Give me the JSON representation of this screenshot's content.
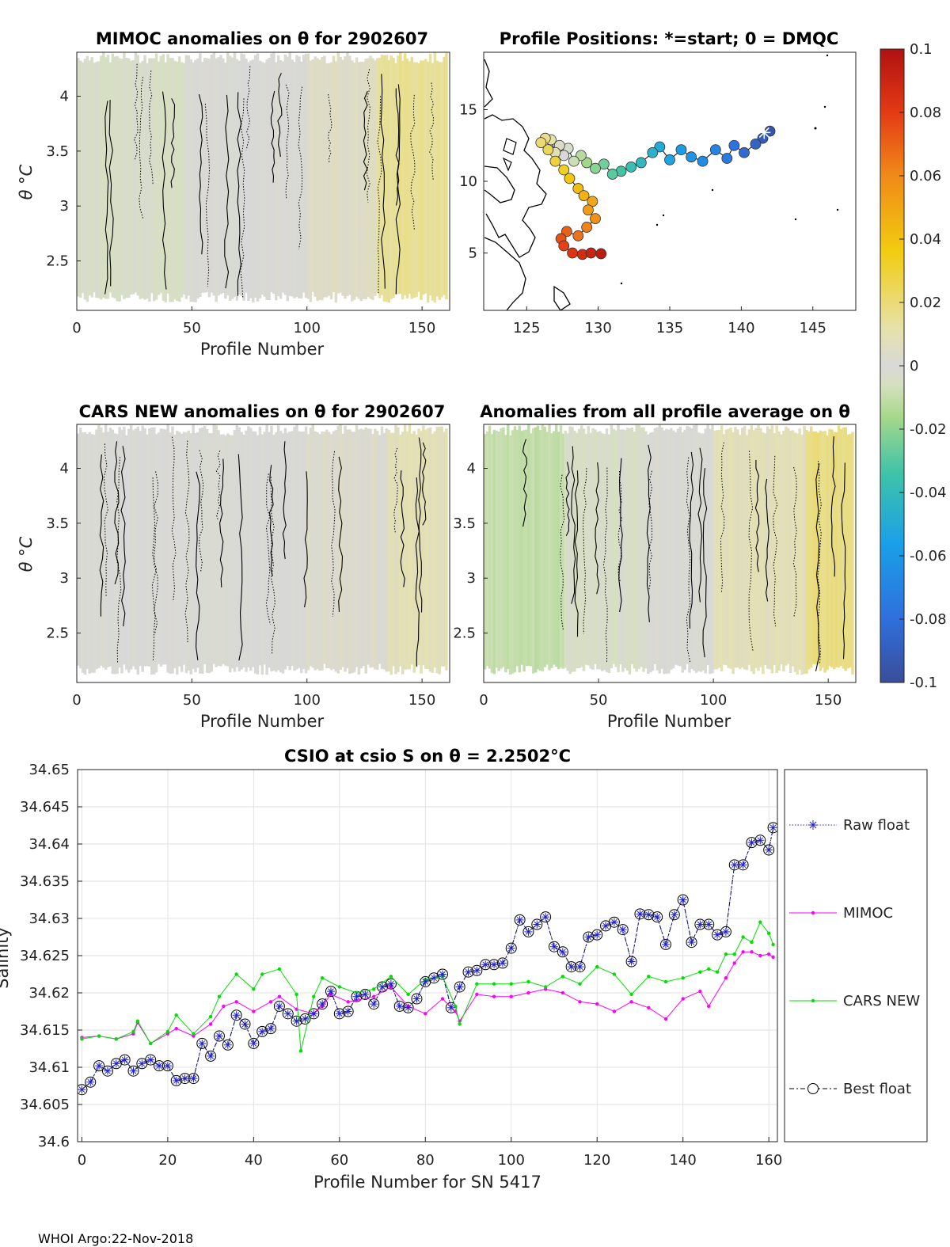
{
  "footer": "WHOI Argo:22-Nov-2018",
  "chart_data": [
    {
      "type": "heatmap",
      "title": "MIMOC anomalies on θ  for 2902607",
      "xlabel": "Profile Number",
      "ylabel": "θ °C",
      "xlim": [
        0,
        162
      ],
      "ylim": [
        2.05,
        4.4
      ],
      "xticks": [
        "0",
        "50",
        "100",
        "150"
      ],
      "yticks": [
        "2.5",
        "3",
        "3.5",
        "4"
      ],
      "zones": [
        {
          "x0": 0,
          "x1": 48,
          "value": -0.004
        },
        {
          "x0": 48,
          "x1": 100,
          "value": 0.0
        },
        {
          "x0": 100,
          "x1": 130,
          "value": 0.005
        },
        {
          "x0": 130,
          "x1": 162,
          "value": 0.015
        }
      ]
    },
    {
      "type": "scatter",
      "title": "Profile Positions: *=start; 0 = DMQC",
      "xlim": [
        122,
        148
      ],
      "ylim": [
        1,
        19
      ],
      "xticks": [
        "125",
        "130",
        "135",
        "140",
        "145"
      ],
      "yticks": [
        "5",
        "10",
        "15"
      ],
      "colorbar": {
        "min": -0.1,
        "max": 0.1,
        "ticks": [
          "0.1",
          "0.08",
          "0.06",
          "0.04",
          "0.02",
          "0",
          "-0.02",
          "-0.04",
          "-0.06",
          "-0.08",
          "-0.1"
        ]
      },
      "track_lon": [
        142.0,
        141.5,
        141.0,
        140.2,
        139.5,
        139.0,
        138.2,
        137.3,
        136.5,
        135.8,
        135.0,
        134.3,
        133.8,
        133.0,
        132.3,
        131.6,
        131.0,
        130.4,
        129.8,
        129.2,
        128.8,
        128.3,
        127.9,
        127.6,
        127.3,
        127.0,
        126.7,
        126.3,
        126.0,
        126.5,
        127.0,
        127.6,
        128.0,
        128.6,
        129.0,
        129.6,
        129.3,
        129.8,
        129.2,
        128.6,
        127.8,
        127.4,
        127.6,
        128.2,
        128.9,
        129.5,
        130.2
      ],
      "track_lat": [
        13.5,
        13.0,
        12.6,
        12.0,
        12.5,
        11.6,
        12.2,
        11.4,
        11.7,
        12.2,
        11.5,
        12.4,
        12.0,
        11.3,
        11.0,
        10.7,
        10.5,
        11.2,
        10.9,
        11.3,
        11.8,
        11.4,
        12.3,
        11.8,
        12.5,
        12.0,
        12.9,
        13.0,
        12.7,
        12.2,
        11.4,
        10.8,
        10.2,
        9.5,
        9.0,
        8.6,
        8.0,
        7.4,
        6.8,
        6.2,
        6.5,
        6.0,
        5.5,
        5.0,
        4.9,
        5.0,
        4.95
      ],
      "start": {
        "lon": 141.6,
        "lat": 13.4
      }
    },
    {
      "type": "heatmap",
      "title": "CARS NEW anomalies on θ for 2902607",
      "xlabel": "Profile Number",
      "ylabel": "θ °C",
      "xlim": [
        0,
        162
      ],
      "ylim": [
        2.05,
        4.4
      ],
      "xticks": [
        "0",
        "50",
        "100",
        "150"
      ],
      "yticks": [
        "2.5",
        "3",
        "3.5",
        "4"
      ],
      "zones": [
        {
          "x0": 0,
          "x1": 100,
          "value": 0.0
        },
        {
          "x0": 100,
          "x1": 135,
          "value": 0.003
        },
        {
          "x0": 135,
          "x1": 162,
          "value": 0.008
        }
      ]
    },
    {
      "type": "heatmap",
      "title": "Anomalies from all profile average on θ",
      "xlabel": "Profile Number",
      "xlim": [
        0,
        162
      ],
      "ylim": [
        2.05,
        4.4
      ],
      "xticks": [
        "0",
        "50",
        "100",
        "150"
      ],
      "yticks": [
        "2.5",
        "3",
        "3.5",
        "4"
      ],
      "zones": [
        {
          "x0": 0,
          "x1": 35,
          "value": -0.01
        },
        {
          "x0": 35,
          "x1": 70,
          "value": -0.004
        },
        {
          "x0": 70,
          "x1": 100,
          "value": 0.0
        },
        {
          "x0": 100,
          "x1": 140,
          "value": 0.008
        },
        {
          "x0": 140,
          "x1": 162,
          "value": 0.018
        }
      ]
    },
    {
      "type": "line",
      "title": "CSIO at csio S on θ = 2.2502°C",
      "xlabel": "Profile Number for SN 5417",
      "ylabel": "Salinity",
      "xlim": [
        -1,
        162
      ],
      "ylim": [
        34.6,
        34.65
      ],
      "xticks": [
        "0",
        "20",
        "40",
        "60",
        "80",
        "100",
        "120",
        "140",
        "160"
      ],
      "yticks": [
        "34.6",
        "34.605",
        "34.61",
        "34.615",
        "34.62",
        "34.625",
        "34.63",
        "34.635",
        "34.64",
        "34.645",
        "34.65"
      ],
      "grid": true,
      "legend": [
        "Raw float",
        "MIMOC",
        "CARS NEW",
        "Best float"
      ],
      "series": [
        {
          "name": "Best float",
          "x": [
            0,
            2,
            4,
            6,
            8,
            10,
            12,
            14,
            16,
            18,
            20,
            22,
            24,
            26,
            28,
            30,
            32,
            34,
            36,
            38,
            40,
            42,
            44,
            46,
            48,
            50,
            52,
            54,
            56,
            58,
            60,
            62,
            64,
            66,
            68,
            70,
            72,
            74,
            76,
            78,
            80,
            82,
            84,
            86,
            88,
            90,
            92,
            94,
            96,
            98,
            100,
            102,
            104,
            106,
            108,
            110,
            112,
            114,
            116,
            118,
            120,
            122,
            124,
            126,
            128,
            130,
            132,
            134,
            136,
            138,
            140,
            142,
            144,
            146,
            148,
            150,
            152,
            154,
            156,
            158,
            160,
            161
          ],
          "values": [
            34.607,
            34.608,
            34.6102,
            34.6095,
            34.6105,
            34.611,
            34.6095,
            34.6105,
            34.611,
            34.6102,
            34.6102,
            34.6082,
            34.6085,
            34.6085,
            34.6132,
            34.6115,
            34.6142,
            34.613,
            34.617,
            34.6158,
            34.6132,
            34.6148,
            34.6152,
            34.6182,
            34.6172,
            34.6162,
            34.6165,
            34.6172,
            34.6185,
            34.6202,
            34.6172,
            34.6175,
            34.6195,
            34.6198,
            34.6185,
            34.6208,
            34.6212,
            34.6182,
            34.618,
            34.6192,
            34.6215,
            34.622,
            34.6225,
            34.618,
            34.6208,
            34.6228,
            34.623,
            34.6238,
            34.6238,
            34.624,
            34.626,
            34.6298,
            34.6282,
            34.6292,
            34.6302,
            34.6262,
            34.6255,
            34.6235,
            34.6235,
            34.6275,
            34.6278,
            34.629,
            34.6295,
            34.6285,
            34.6242,
            34.6306,
            34.6305,
            34.6302,
            34.6265,
            34.6305,
            34.6325,
            34.6268,
            34.6292,
            34.6292,
            34.6278,
            34.6282,
            34.6372,
            34.6372,
            34.6402,
            34.6405,
            34.6392,
            34.6422
          ]
        },
        {
          "name": "MIMOC",
          "x": [
            0,
            4,
            8,
            12,
            13,
            16,
            20,
            22,
            26,
            30,
            33,
            36,
            40,
            44,
            46,
            50,
            54,
            56,
            58,
            62,
            64,
            68,
            72,
            76,
            80,
            84,
            87,
            88,
            92,
            96,
            100,
            104,
            108,
            112,
            116,
            120,
            124,
            128,
            132,
            136,
            140,
            144,
            146,
            150,
            152,
            154,
            156,
            158,
            160,
            161
          ],
          "values": [
            34.614,
            34.6142,
            34.6138,
            34.6145,
            34.616,
            34.6132,
            34.6145,
            34.6152,
            34.6142,
            34.6158,
            34.6182,
            34.6188,
            34.6175,
            34.6188,
            34.6195,
            34.6178,
            34.6172,
            34.6182,
            34.6198,
            34.6188,
            34.619,
            34.6195,
            34.6208,
            34.6182,
            34.6172,
            34.6192,
            34.6175,
            34.6162,
            34.6198,
            34.6195,
            34.6195,
            34.62,
            34.6205,
            34.62,
            34.6188,
            34.6185,
            34.6175,
            34.6188,
            34.618,
            34.6165,
            34.6192,
            34.6202,
            34.6182,
            34.622,
            34.624,
            34.6255,
            34.6255,
            34.625,
            34.6252,
            34.6248
          ]
        },
        {
          "name": "CARS NEW",
          "x": [
            0,
            4,
            8,
            12,
            13,
            16,
            20,
            22,
            26,
            30,
            32,
            36,
            40,
            42,
            46,
            50,
            51,
            54,
            56,
            60,
            64,
            68,
            72,
            76,
            80,
            84,
            87,
            88,
            92,
            96,
            100,
            104,
            108,
            112,
            116,
            120,
            124,
            128,
            132,
            136,
            140,
            144,
            146,
            148,
            150,
            152,
            154,
            156,
            158,
            160,
            161
          ],
          "values": [
            34.6138,
            34.6142,
            34.6138,
            34.6148,
            34.6162,
            34.6132,
            34.6148,
            34.617,
            34.6145,
            34.6168,
            34.6195,
            34.6225,
            34.6205,
            34.6225,
            34.6232,
            34.6198,
            34.6122,
            34.6195,
            34.622,
            34.6208,
            34.62,
            34.6205,
            34.6222,
            34.6198,
            34.6218,
            34.6222,
            34.6182,
            34.6158,
            34.6212,
            34.6212,
            34.6212,
            34.6215,
            34.6208,
            34.6222,
            34.6212,
            34.6235,
            34.6225,
            34.6198,
            34.6222,
            34.6215,
            34.622,
            34.6228,
            34.6232,
            34.6228,
            34.6252,
            34.6252,
            34.6275,
            34.6268,
            34.6295,
            34.628,
            34.6265
          ]
        },
        {
          "name": "Raw float",
          "x": [
            0,
            2,
            4,
            6,
            8,
            10,
            12,
            14,
            16,
            18,
            20,
            22,
            24,
            26,
            28,
            30,
            32,
            34,
            36,
            38,
            40,
            42,
            44,
            46,
            48,
            50,
            52,
            54,
            56,
            58,
            60,
            62,
            64,
            66,
            68,
            70,
            72,
            74,
            76,
            78,
            80,
            82,
            84,
            86,
            88,
            90,
            92,
            94,
            96,
            98,
            100,
            102,
            104,
            106,
            108,
            110,
            112,
            114,
            116,
            118,
            120,
            122,
            124,
            126,
            128,
            130,
            132,
            134,
            136,
            138,
            140,
            142,
            144,
            146,
            148,
            150,
            152,
            154,
            156,
            158,
            160,
            161
          ],
          "values": [
            34.607,
            34.608,
            34.6102,
            34.6095,
            34.6105,
            34.611,
            34.6095,
            34.6105,
            34.611,
            34.6102,
            34.6102,
            34.6082,
            34.6085,
            34.6085,
            34.6132,
            34.6115,
            34.6142,
            34.613,
            34.617,
            34.6158,
            34.6132,
            34.6148,
            34.6152,
            34.6182,
            34.6172,
            34.6162,
            34.6165,
            34.6172,
            34.6185,
            34.6202,
            34.6172,
            34.6175,
            34.6195,
            34.6198,
            34.6185,
            34.6208,
            34.6212,
            34.6182,
            34.618,
            34.6192,
            34.6215,
            34.622,
            34.6225,
            34.618,
            34.6208,
            34.6228,
            34.623,
            34.6238,
            34.6238,
            34.624,
            34.626,
            34.6298,
            34.6282,
            34.6292,
            34.6302,
            34.6262,
            34.6255,
            34.6235,
            34.6235,
            34.6275,
            34.6278,
            34.629,
            34.6295,
            34.6285,
            34.6242,
            34.6306,
            34.6305,
            34.6302,
            34.6265,
            34.6305,
            34.6325,
            34.6268,
            34.6292,
            34.6292,
            34.6278,
            34.6282,
            34.6372,
            34.6372,
            34.6402,
            34.6405,
            34.6392,
            34.6422
          ]
        }
      ]
    }
  ]
}
